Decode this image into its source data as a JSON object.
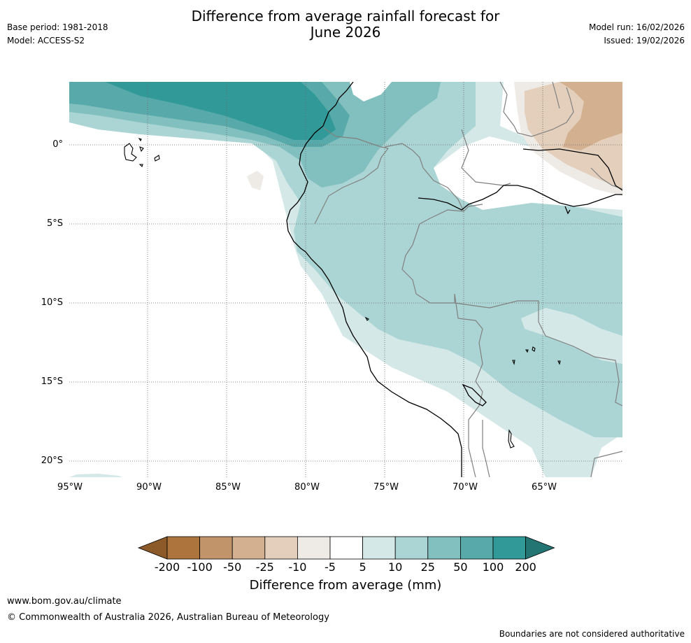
{
  "header": {
    "title_line1": "Difference from average rainfall forecast for",
    "title_line2": "June 2026",
    "base_period": "Base period: 1981-2018",
    "model": "Model: ACCESS-S2",
    "model_run": "Model run: 16/02/2026",
    "issued": "Issued: 19/02/2026"
  },
  "axes": {
    "lat_labels": [
      "0°",
      "5°S",
      "10°S",
      "15°S",
      "20°S"
    ],
    "lon_labels": [
      "95°W",
      "90°W",
      "85°W",
      "80°W",
      "75°W",
      "70°W",
      "65°W"
    ]
  },
  "legend": {
    "title": "Difference from average (mm)",
    "ticks": [
      "-200",
      "-100",
      "-50",
      "-25",
      "-10",
      "-5",
      "5",
      "10",
      "25",
      "50",
      "100",
      "200"
    ],
    "colors": [
      "#8c5a28",
      "#ad743d",
      "#c19469",
      "#d3b190",
      "#e3cfbb",
      "#eeebe7",
      "#ffffff",
      "#d4e8e7",
      "#abd5d4",
      "#82c0bf",
      "#57aaa9",
      "#319a99",
      "#237574"
    ]
  },
  "footer": {
    "url": "www.bom.gov.au/climate",
    "copyright": "© Commonwealth of Australia 2026, Australian Bureau of Meteorology",
    "note": "Boundaries are not considered authoritative"
  }
}
